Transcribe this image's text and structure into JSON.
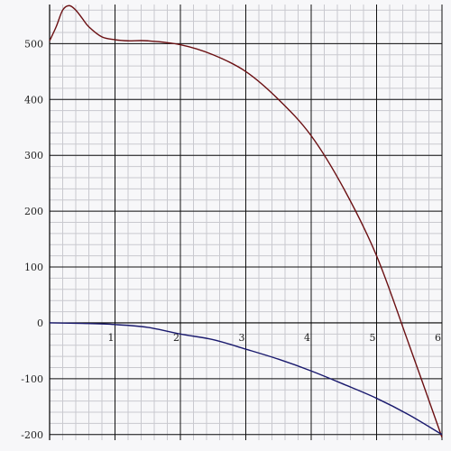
{
  "chart_data": {
    "type": "line",
    "title": "",
    "xlabel": "",
    "ylabel": "",
    "xlim": [
      0,
      6
    ],
    "ylim": [
      -210,
      570
    ],
    "grid": true,
    "minor_grid": true,
    "x_ticks": [
      1,
      2,
      3,
      4,
      5,
      6
    ],
    "y_ticks": [
      -200,
      -100,
      0,
      100,
      200,
      300,
      400,
      500
    ],
    "x_tick_labels": [
      "1",
      "2",
      "3",
      "4",
      "5",
      "6"
    ],
    "y_tick_labels": [
      "-200",
      "-100",
      "0",
      "100",
      "200",
      "300",
      "400",
      "500"
    ],
    "series": [
      {
        "color": "#6b0f12",
        "x": [
          0,
          0.1,
          0.2,
          0.3,
          0.4,
          0.5,
          0.6,
          0.8,
          1.0,
          1.2,
          1.5,
          2.0,
          2.5,
          3.0,
          3.5,
          4.0,
          4.5,
          5.0,
          5.5,
          6.0
        ],
        "y": [
          505,
          530,
          560,
          568,
          560,
          545,
          530,
          512,
          507,
          505,
          505,
          498,
          480,
          450,
          400,
          335,
          240,
          120,
          -40,
          -205
        ]
      },
      {
        "color": "#1a1a6e",
        "x": [
          0,
          0.5,
          1.0,
          1.5,
          2.0,
          2.5,
          3.0,
          3.5,
          4.0,
          4.5,
          5.0,
          5.5,
          6.0
        ],
        "y": [
          0,
          -1,
          -3,
          -8,
          -20,
          -30,
          -47,
          -65,
          -86,
          -110,
          -135,
          -165,
          -200
        ]
      }
    ]
  }
}
